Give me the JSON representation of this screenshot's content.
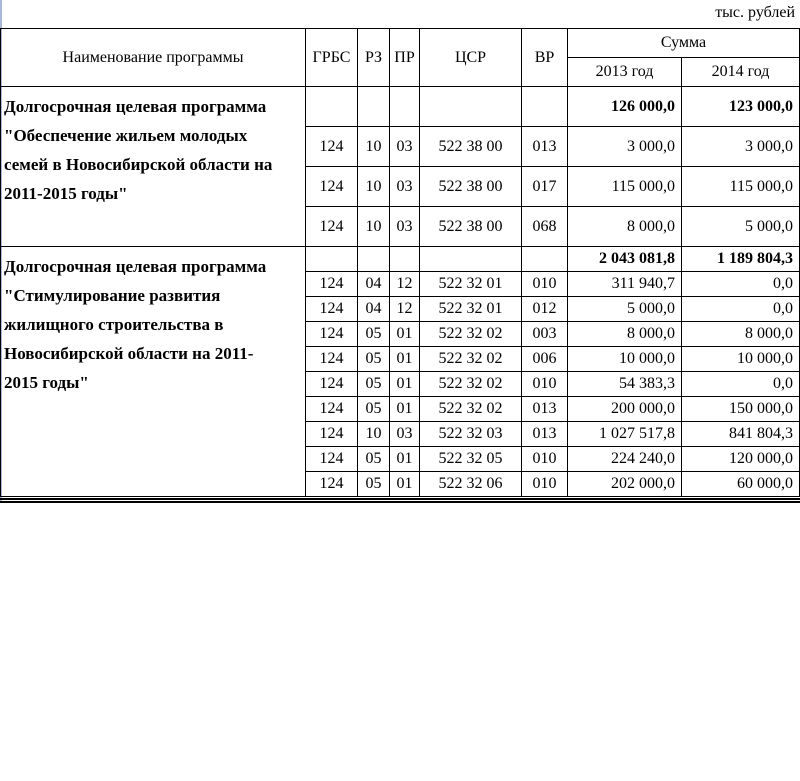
{
  "page": {
    "unit_label": "тыс. рублей"
  },
  "colors": {
    "border": "#000000",
    "frame_line": "#aab8d8",
    "background": "#ffffff",
    "text": "#000000"
  },
  "table": {
    "headers": {
      "name": "Наименование программы",
      "grbs": "ГРБС",
      "rz": "РЗ",
      "pr": "ПР",
      "csr": "ЦСР",
      "vr": "ВР",
      "sum": "Сумма",
      "year2013": "2013 год",
      "year2014": "2014 год"
    },
    "groups": [
      {
        "program": "Долгосрочная целевая программа\n\"Обеспечение жильем молодых\nсемей в Новосибирской области на\n2011-2015 годы\"",
        "total": {
          "y2013": "126 000,0",
          "y2014": "123 000,0"
        },
        "rows": [
          {
            "grbs": "124",
            "rz": "10",
            "pr": "03",
            "csr": "522 38 00",
            "vr": "013",
            "y2013": "3 000,0",
            "y2014": "3 000,0"
          },
          {
            "grbs": "124",
            "rz": "10",
            "pr": "03",
            "csr": "522 38 00",
            "vr": "017",
            "y2013": "115 000,0",
            "y2014": "115 000,0"
          },
          {
            "grbs": "124",
            "rz": "10",
            "pr": "03",
            "csr": "522 38 00",
            "vr": "068",
            "y2013": "8 000,0",
            "y2014": "5 000,0"
          }
        ]
      },
      {
        "program": "Долгосрочная целевая программа\n\"Стимулирование развития\nжилищного строительства в\nНовосибирской области на 2011-\n2015 годы\"",
        "total": {
          "y2013": "2 043 081,8",
          "y2014": "1 189 804,3"
        },
        "rows": [
          {
            "grbs": "124",
            "rz": "04",
            "pr": "12",
            "csr": "522 32 01",
            "vr": "010",
            "y2013": "311 940,7",
            "y2014": "0,0"
          },
          {
            "grbs": "124",
            "rz": "04",
            "pr": "12",
            "csr": "522 32 01",
            "vr": "012",
            "y2013": "5 000,0",
            "y2014": "0,0"
          },
          {
            "grbs": "124",
            "rz": "05",
            "pr": "01",
            "csr": "522 32 02",
            "vr": "003",
            "y2013": "8 000,0",
            "y2014": "8 000,0"
          },
          {
            "grbs": "124",
            "rz": "05",
            "pr": "01",
            "csr": "522 32 02",
            "vr": "006",
            "y2013": "10 000,0",
            "y2014": "10 000,0"
          },
          {
            "grbs": "124",
            "rz": "05",
            "pr": "01",
            "csr": "522 32 02",
            "vr": "010",
            "y2013": "54 383,3",
            "y2014": "0,0"
          },
          {
            "grbs": "124",
            "rz": "05",
            "pr": "01",
            "csr": "522 32 02",
            "vr": "013",
            "y2013": "200 000,0",
            "y2014": "150 000,0"
          },
          {
            "grbs": "124",
            "rz": "10",
            "pr": "03",
            "csr": "522 32 03",
            "vr": "013",
            "y2013": "1 027 517,8",
            "y2014": "841 804,3"
          },
          {
            "grbs": "124",
            "rz": "05",
            "pr": "01",
            "csr": "522 32 05",
            "vr": "010",
            "y2013": "224 240,0",
            "y2014": "120 000,0"
          },
          {
            "grbs": "124",
            "rz": "05",
            "pr": "01",
            "csr": "522 32 06",
            "vr": "010",
            "y2013": "202 000,0",
            "y2014": "60 000,0"
          }
        ]
      }
    ]
  }
}
